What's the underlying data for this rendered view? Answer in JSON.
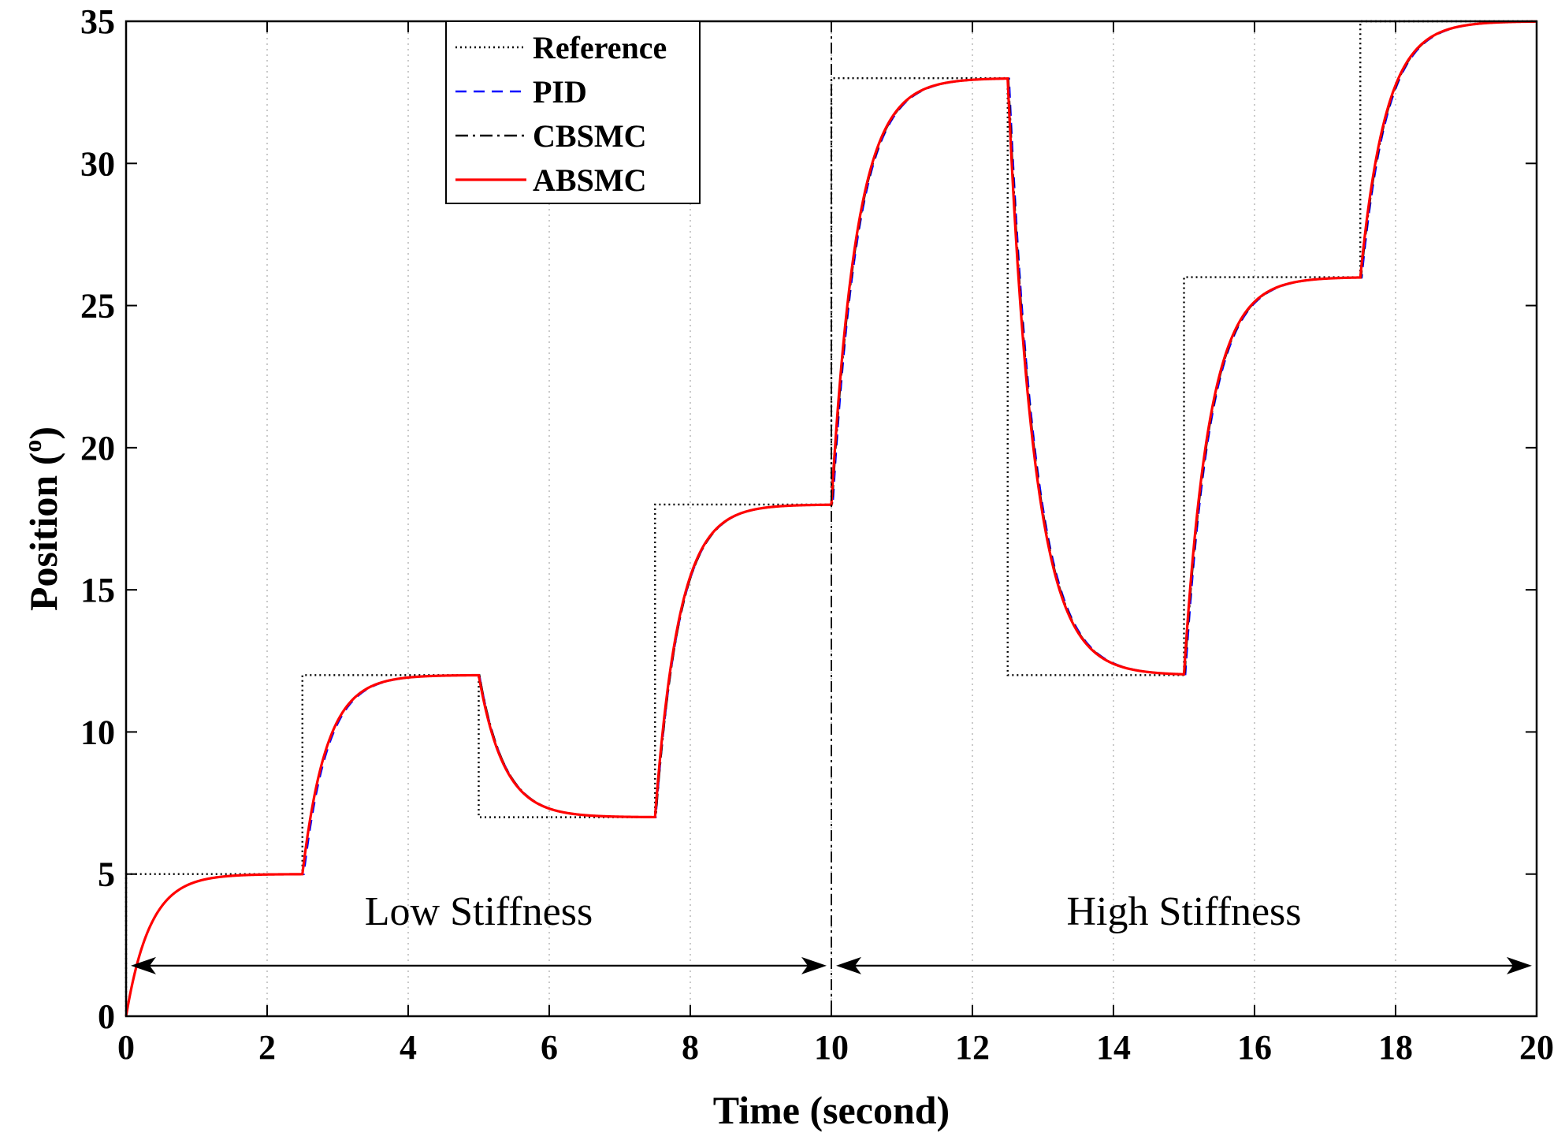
{
  "chart_data": {
    "type": "line",
    "title": "",
    "xlabel": "Time (second)",
    "ylabel_main": "Position (",
    "ylabel_sup": "o",
    "ylabel_close": ")",
    "xlim": [
      0,
      20
    ],
    "ylim": [
      0,
      35
    ],
    "xticks": [
      "0",
      "2",
      "4",
      "6",
      "8",
      "10",
      "12",
      "14",
      "16",
      "18",
      "20"
    ],
    "yticks": [
      "0",
      "5",
      "10",
      "15",
      "20",
      "25",
      "30",
      "35"
    ],
    "grid": "vertical dotted",
    "legend_position": "top-left-center",
    "reference_steps": [
      {
        "t_start": 0,
        "t_end": 2.5,
        "value": 5
      },
      {
        "t_start": 2.5,
        "t_end": 5,
        "value": 12
      },
      {
        "t_start": 5,
        "t_end": 7.5,
        "value": 7
      },
      {
        "t_start": 7.5,
        "t_end": 10,
        "value": 18
      },
      {
        "t_start": 10,
        "t_end": 12.5,
        "value": 33
      },
      {
        "t_start": 12.5,
        "t_end": 15,
        "value": 12
      },
      {
        "t_start": 15,
        "t_end": 17.5,
        "value": 26
      },
      {
        "t_start": 17.5,
        "t_end": 20,
        "value": 35
      }
    ],
    "series": [
      {
        "name": "Reference",
        "color": "#000000",
        "style": "dotted"
      },
      {
        "name": "PID",
        "color": "#0000ff",
        "style": "dashed"
      },
      {
        "name": "CBSMC",
        "color": "#000000",
        "style": "dashdot"
      },
      {
        "name": "ABSMC",
        "color": "#ff0000",
        "style": "solid"
      }
    ],
    "vertical_marker_x": 10,
    "annotations": [
      {
        "text": "Low Stiffness",
        "from_x": 0,
        "to_x": 10,
        "arrow_y": 2,
        "text_x": 5,
        "text_y": 3
      },
      {
        "text": "High Stiffness",
        "from_x": 10,
        "to_x": 20,
        "arrow_y": 2,
        "text_x": 15,
        "text_y": 3
      }
    ]
  }
}
